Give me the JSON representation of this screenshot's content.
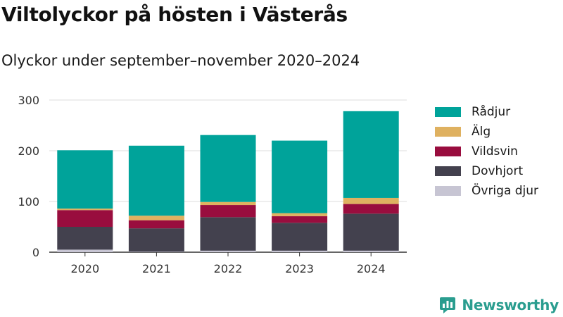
{
  "title": "Viltolyckor på hösten i Västerås",
  "subtitle": "Olyckor under september–november 2020–2024",
  "brand": {
    "name": "Newsworthy",
    "logo_icon": "bar-chart-speech-bubble-icon"
  },
  "chart_data": {
    "type": "bar",
    "stacked": true,
    "categories": [
      "2020",
      "2021",
      "2022",
      "2023",
      "2024"
    ],
    "series": [
      {
        "name": "Övriga djur",
        "color": "#c7c5d3",
        "values": [
          5,
          1,
          3,
          3,
          3
        ]
      },
      {
        "name": "Dovhjort",
        "color": "#43414e",
        "values": [
          45,
          46,
          66,
          55,
          73
        ]
      },
      {
        "name": "Vildsvin",
        "color": "#990d3e",
        "values": [
          33,
          16,
          24,
          13,
          19
        ]
      },
      {
        "name": "Älg",
        "color": "#dfb160",
        "values": [
          3,
          9,
          6,
          6,
          12
        ]
      },
      {
        "name": "Rådjur",
        "color": "#00a39a",
        "values": [
          115,
          138,
          132,
          143,
          171
        ]
      }
    ],
    "legend_order": [
      "Rådjur",
      "Älg",
      "Vildsvin",
      "Dovhjort",
      "Övriga djur"
    ],
    "yticks": [
      0,
      100,
      200,
      300
    ],
    "ylim": [
      0,
      300
    ],
    "xlabel": "",
    "ylabel": "",
    "grid": true,
    "legend_position": "right"
  }
}
